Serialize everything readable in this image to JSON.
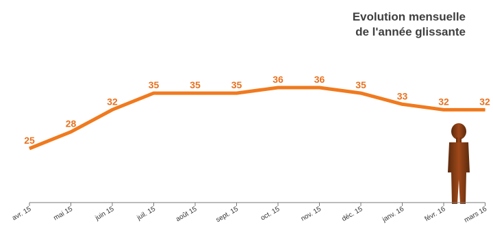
{
  "title_lines": [
    "Evolution mensuelle",
    "de l'année glissante"
  ],
  "chart_data": {
    "type": "line",
    "title": "Evolution mensuelle de l'année glissante",
    "categories": [
      "avr. 15",
      "mai 15",
      "juin 15",
      "juil. 15",
      "août 15",
      "sept. 15",
      "oct. 15",
      "nov. 15",
      "déc. 15",
      "janv. 16",
      "févr. 16",
      "mars 16"
    ],
    "values": [
      25,
      28,
      32,
      35,
      35,
      35,
      36,
      36,
      35,
      33,
      32,
      32
    ],
    "data_labels": [
      "25",
      "28",
      "32",
      "35",
      "35",
      "35",
      "36",
      "36",
      "35",
      "33",
      "32",
      "32"
    ],
    "line_color": "#f07a1e",
    "label_color": "#e8711f",
    "grid": false,
    "legend": "none"
  },
  "decoration": {
    "icon": "person-silhouette-icon",
    "color": "#8b3d10"
  }
}
